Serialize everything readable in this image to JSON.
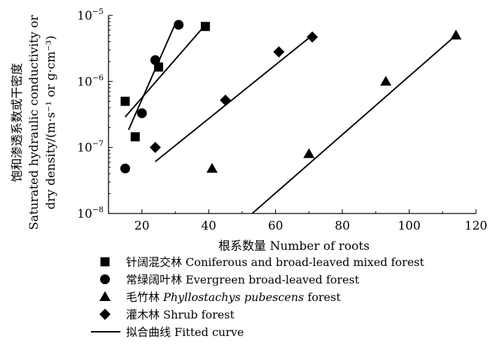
{
  "chart_data": {
    "type": "scatter",
    "xlabel": "根系数量 Number of roots",
    "ylabel_line1": "饱和渗透系数或干密度",
    "ylabel_line2": "Saturated hydraulic conductivity or",
    "ylabel_line3": "dry density/(m·s⁻¹ or g·cm⁻³)",
    "xlim": [
      10,
      120
    ],
    "ylim": [
      1e-08,
      1e-05
    ],
    "yscale": "log",
    "x_ticks": [
      20,
      40,
      60,
      80,
      100,
      120
    ],
    "y_ticks": [
      {
        "value": 1e-08,
        "base": "10",
        "exp": "−8"
      },
      {
        "value": 1e-07,
        "base": "10",
        "exp": "−7"
      },
      {
        "value": 1e-06,
        "base": "10",
        "exp": "−6"
      },
      {
        "value": 1e-05,
        "base": "10",
        "exp": "−5"
      }
    ],
    "grid": false,
    "legend_position": "bottom",
    "series": [
      {
        "label": "针阔混交林 Coniferous and broad-leaved mixed forest",
        "marker": "square",
        "points": [
          [
            15,
            5e-07
          ],
          [
            18,
            1.45e-07
          ],
          [
            25,
            1.65e-06
          ],
          [
            39,
            6.8e-06
          ]
        ],
        "fit": {
          "x_start": 15,
          "x_end": 39,
          "y_start": 2.9e-07,
          "y_end": 7.2e-06
        }
      },
      {
        "label": "常绿阔叶林 Evergreen broad-leaved forest",
        "marker": "circle",
        "points": [
          [
            15,
            4.8e-08
          ],
          [
            20,
            3.3e-07
          ],
          [
            24,
            2.1e-06
          ],
          [
            31,
            7.2e-06
          ]
        ],
        "fit": {
          "x_start": 16,
          "x_end": 30,
          "y_start": 1.85e-07,
          "y_end": 7.5e-06
        }
      },
      {
        "label": "毛竹林 Phyllostachys pubescens forest",
        "label_parts": [
          "毛竹林 ",
          "Phyllostachys pubescens",
          " forest"
        ],
        "marker": "triangle",
        "points": [
          [
            41,
            4.8e-08
          ],
          [
            70,
            8e-08
          ],
          [
            93,
            1e-06
          ],
          [
            114,
            5e-06
          ]
        ],
        "fit": {
          "x_start": 53,
          "x_end": 114,
          "y_start": 1e-08,
          "y_end": 5e-06
        }
      },
      {
        "label": "灌木林 Shrub forest",
        "marker": "diamond",
        "points": [
          [
            24,
            1e-07
          ],
          [
            45,
            5.2e-07
          ],
          [
            61,
            2.8e-06
          ],
          [
            71,
            4.7e-06
          ]
        ],
        "fit": {
          "x_start": 24,
          "x_end": 71,
          "y_start": 6.1e-08,
          "y_end": 5e-06
        }
      }
    ],
    "fitted_curve_label": "拟合曲线 Fitted curve"
  }
}
